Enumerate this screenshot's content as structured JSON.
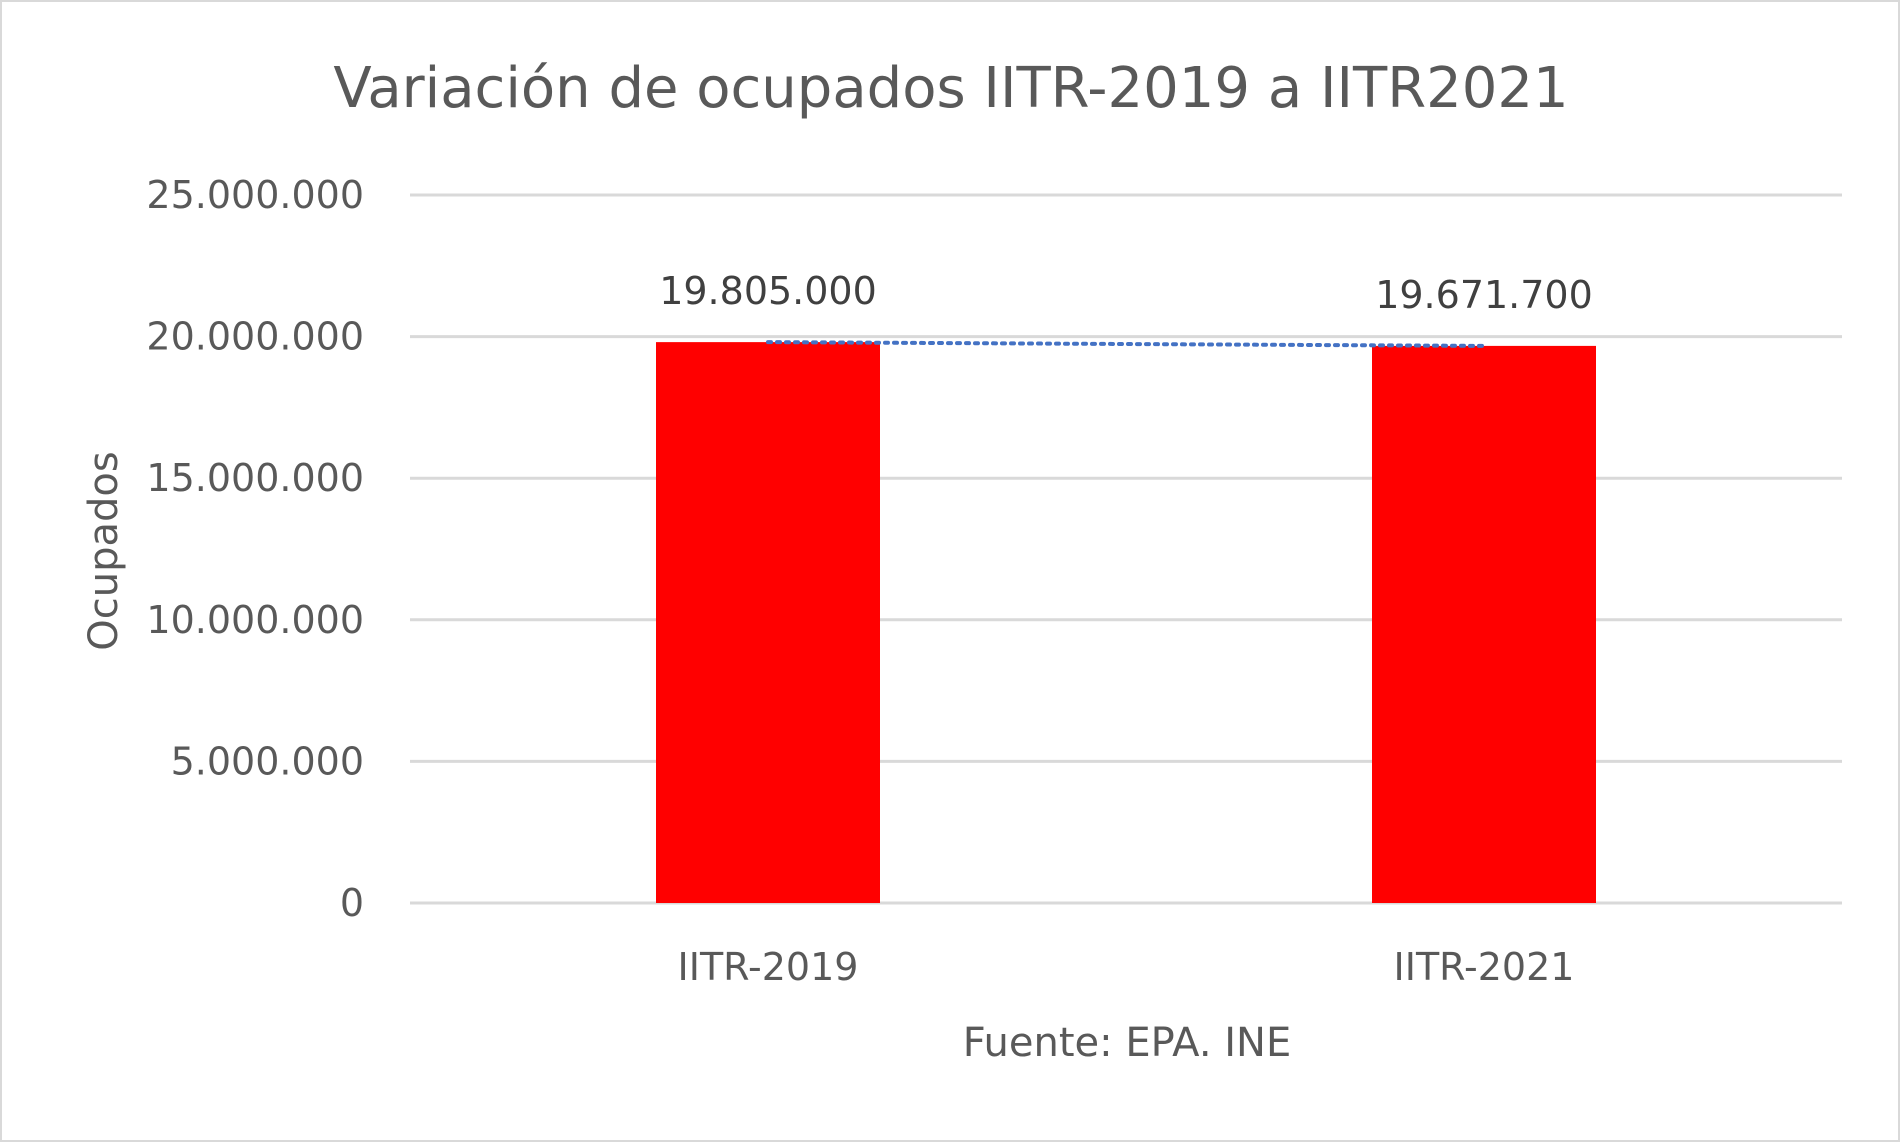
{
  "chart_data": {
    "type": "bar",
    "title": "Variación de ocupados IITR-2019 a IITR2021",
    "xlabel": "Fuente: EPA. INE",
    "ylabel": "Ocupados",
    "categories": [
      "IITR-2019",
      "IITR-2021"
    ],
    "values": [
      19805000,
      19671700
    ],
    "data_labels": [
      "19.805.000",
      "19.671.700"
    ],
    "ylim": [
      0,
      25000000
    ],
    "yticks": [
      0,
      5000000,
      10000000,
      15000000,
      20000000,
      25000000
    ],
    "ytick_labels": [
      "0",
      "5.000.000",
      "10.000.000",
      "15.000.000",
      "20.000.000",
      "25.000.000"
    ],
    "grid": true,
    "trendline": "dotted",
    "colors": {
      "bar": "#ff0000",
      "trendline": "#4472c4",
      "grid": "#d9d9d9",
      "text": "#595959"
    }
  }
}
